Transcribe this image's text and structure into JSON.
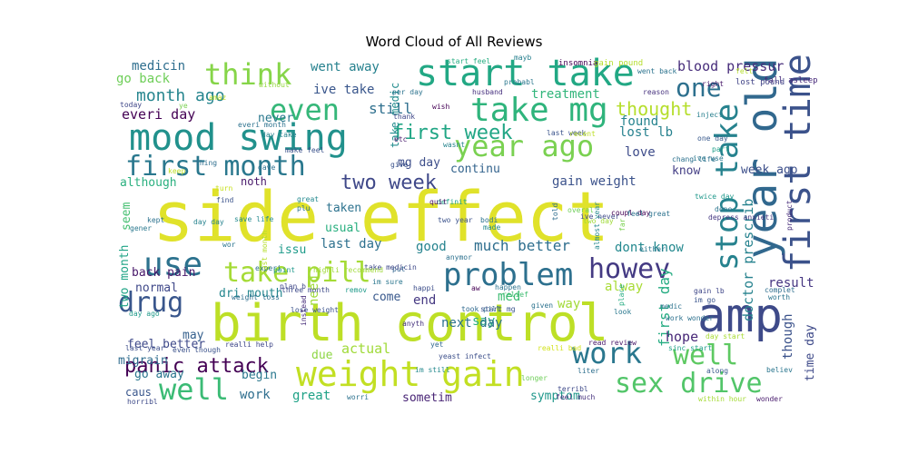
{
  "chart_data": {
    "type": "wordcloud",
    "title": "Word Cloud of All Reviews",
    "background": "#ffffff",
    "colormap": "viridis",
    "words": [
      {
        "text": "side effect",
        "color": "#e0e22a"
      },
      {
        "text": "birth control",
        "color": "#bddf26"
      },
      {
        "text": "mood swing",
        "color": "#21918c"
      },
      {
        "text": "weight gain",
        "color": "#c2df23"
      },
      {
        "text": "start take",
        "color": "#22a884"
      },
      {
        "text": "take mg",
        "color": "#2fb47c"
      },
      {
        "text": "first month",
        "color": "#2a788e"
      },
      {
        "text": "year ago",
        "color": "#7ad151"
      },
      {
        "text": "year old",
        "color": "#31688e"
      },
      {
        "text": "first time",
        "color": "#3b528b"
      },
      {
        "text": "amp",
        "color": "#3e4a89"
      },
      {
        "text": "use",
        "color": "#2c728e"
      },
      {
        "text": "problem",
        "color": "#2d708e"
      },
      {
        "text": "stop take",
        "color": "#26828e"
      },
      {
        "text": "even",
        "color": "#35b779"
      },
      {
        "text": "think",
        "color": "#86d549"
      },
      {
        "text": "take pill",
        "color": "#a5db36"
      },
      {
        "text": "drug",
        "color": "#39568c"
      },
      {
        "text": "howev",
        "color": "#443a83"
      },
      {
        "text": "work",
        "color": "#2a778e"
      },
      {
        "text": "well",
        "color": "#5ec962"
      },
      {
        "text": "well",
        "color": "#3bbb75"
      },
      {
        "text": "sex drive",
        "color": "#52c569"
      },
      {
        "text": "one",
        "color": "#2d708e"
      },
      {
        "text": "panic attack",
        "color": "#440154"
      },
      {
        "text": "first week",
        "color": "#21a685"
      },
      {
        "text": "two week",
        "color": "#3f4889"
      },
      {
        "text": "month ago",
        "color": "#25858e"
      },
      {
        "text": "thought",
        "color": "#b5de2b"
      },
      {
        "text": "blood pressur",
        "color": "#472d7b"
      },
      {
        "text": "still",
        "color": "#2e6f8e"
      },
      {
        "text": "lost lb",
        "color": "#26818e"
      },
      {
        "text": "everi day",
        "color": "#440154"
      },
      {
        "text": "gain weight",
        "color": "#3b528b"
      },
      {
        "text": "go back",
        "color": "#6ece58"
      },
      {
        "text": "medicin",
        "color": "#2e6e8e"
      },
      {
        "text": "went away",
        "color": "#26818e"
      },
      {
        "text": "ive take",
        "color": "#39568c"
      },
      {
        "text": "treatment",
        "color": "#31b57b"
      },
      {
        "text": "found",
        "color": "#25838e"
      },
      {
        "text": "love",
        "color": "#3e4c8a"
      },
      {
        "text": "never",
        "color": "#2a788e"
      },
      {
        "text": "although",
        "color": "#2ab07f"
      },
      {
        "text": "noth",
        "color": "#48186a"
      },
      {
        "text": "take medic",
        "color": "#228c8d"
      },
      {
        "text": "mg day",
        "color": "#3d4e8a"
      },
      {
        "text": "continu",
        "color": "#33638d"
      },
      {
        "text": "last day",
        "color": "#2d708e"
      },
      {
        "text": "know",
        "color": "#433e85"
      },
      {
        "text": "week ago",
        "color": "#3c4f8a"
      },
      {
        "text": "taken",
        "color": "#2c728e"
      },
      {
        "text": "usual",
        "color": "#29af7f"
      },
      {
        "text": "issu",
        "color": "#1e9b8a"
      },
      {
        "text": "good",
        "color": "#25838e"
      },
      {
        "text": "much better",
        "color": "#2e6e8e"
      },
      {
        "text": "dont know",
        "color": "#23888e"
      },
      {
        "text": "seem",
        "color": "#44bf70"
      },
      {
        "text": "two month",
        "color": "#20a486"
      },
      {
        "text": "need",
        "color": "#9fda3a"
      },
      {
        "text": "alway",
        "color": "#a8db34"
      },
      {
        "text": "first day",
        "color": "#25ac82"
      },
      {
        "text": "doctor prescrib",
        "color": "#26828e"
      },
      {
        "text": "result",
        "color": "#453581"
      },
      {
        "text": "back pain",
        "color": "#48186a"
      },
      {
        "text": "normal",
        "color": "#3f4889"
      },
      {
        "text": "dri mouth",
        "color": "#24868e"
      },
      {
        "text": "come",
        "color": "#38588c"
      },
      {
        "text": "med",
        "color": "#3fbc73"
      },
      {
        "text": "way",
        "color": "#a2da37"
      },
      {
        "text": "say",
        "color": "#2ab07f"
      },
      {
        "text": "end",
        "color": "#453882"
      },
      {
        "text": "hope",
        "color": "#482878"
      },
      {
        "text": "though",
        "color": "#3b528b"
      },
      {
        "text": "feel better",
        "color": "#3e4989"
      },
      {
        "text": "migrain",
        "color": "#2f6c8e"
      },
      {
        "text": "may",
        "color": "#35608d"
      },
      {
        "text": "next day",
        "color": "#2c728e"
      },
      {
        "text": "actual",
        "color": "#a0da39"
      },
      {
        "text": "due",
        "color": "#8ed645"
      },
      {
        "text": "time day",
        "color": "#3e4a89"
      },
      {
        "text": "go away",
        "color": "#2a768e"
      },
      {
        "text": "begin",
        "color": "#2a788e"
      },
      {
        "text": "caus",
        "color": "#39568c"
      },
      {
        "text": "work",
        "color": "#2e6e8e"
      },
      {
        "text": "great",
        "color": "#1fa287"
      },
      {
        "text": "sometim",
        "color": "#482475"
      },
      {
        "text": "symptom",
        "color": "#1f978b"
      },
      {
        "text": "insomnia",
        "color": "#440154"
      },
      {
        "text": "gain pound",
        "color": "#b5de2b"
      },
      {
        "text": "fall asleep",
        "color": "#472a7a"
      },
      {
        "text": "lost pound",
        "color": "#414487"
      },
      {
        "text": "today",
        "color": "#3f4788"
      },
      {
        "text": "ye",
        "color": "#7ad151"
      },
      {
        "text": "husband",
        "color": "#46307e"
      },
      {
        "text": "start feel",
        "color": "#26ad81"
      },
      {
        "text": "mayb",
        "color": "#277f8e"
      },
      {
        "text": "probabl",
        "color": "#2a778e"
      },
      {
        "text": "per day",
        "color": "#2c738e"
      },
      {
        "text": "wish",
        "color": "#440154"
      },
      {
        "text": "thank",
        "color": "#3f4788"
      },
      {
        "text": "etc",
        "color": "#481a6c"
      },
      {
        "text": "wasnt",
        "color": "#25848e"
      },
      {
        "text": "last week",
        "color": "#3a538b"
      },
      {
        "text": "recent",
        "color": "#bddf26"
      },
      {
        "text": "right",
        "color": "#48186a"
      },
      {
        "text": "reason",
        "color": "#46327e"
      },
      {
        "text": "inject",
        "color": "#277f8e"
      },
      {
        "text": "one day",
        "color": "#38598c"
      },
      {
        "text": "part",
        "color": "#1f9e89"
      },
      {
        "text": "chang life",
        "color": "#2d718e"
      },
      {
        "text": "ive use",
        "color": "#2a788e"
      },
      {
        "text": "give",
        "color": "#3b528b"
      },
      {
        "text": "definit",
        "color": "#1fa088"
      },
      {
        "text": "quit",
        "color": "#471164"
      },
      {
        "text": "told",
        "color": "#2e6d8e"
      },
      {
        "text": "ive never",
        "color": "#3e4a89"
      },
      {
        "text": "overal",
        "color": "#6ece58"
      },
      {
        "text": "coupl day",
        "color": "#440154"
      },
      {
        "text": "twice day",
        "color": "#1f988b"
      },
      {
        "text": "done",
        "color": "#2b748e"
      },
      {
        "text": "depress anxieti",
        "color": "#453882"
      },
      {
        "text": "product",
        "color": "#472c7a"
      },
      {
        "text": "two year",
        "color": "#3b528b"
      },
      {
        "text": "bodi",
        "color": "#2c728e"
      },
      {
        "text": "made",
        "color": "#23898e"
      },
      {
        "text": "two day",
        "color": "#a0da39"
      },
      {
        "text": "feel great",
        "color": "#2c728e"
      },
      {
        "text": "almost year",
        "color": "#23888e"
      },
      {
        "text": "anymor",
        "color": "#2d718e"
      },
      {
        "text": "aw",
        "color": "#440154"
      },
      {
        "text": "happen",
        "color": "#2c738e"
      },
      {
        "text": "put",
        "color": "#32648e"
      },
      {
        "text": "take medicin",
        "color": "#3e4989"
      },
      {
        "text": "remov",
        "color": "#1f9a8a"
      },
      {
        "text": "happi",
        "color": "#3d4e8a"
      },
      {
        "text": "im sure",
        "color": "#2a768e"
      },
      {
        "text": "three month",
        "color": "#3e4a89"
      },
      {
        "text": "wor",
        "color": "#2b758e"
      },
      {
        "text": "plan b",
        "color": "#3f4788"
      },
      {
        "text": "experi",
        "color": "#2d708e"
      },
      {
        "text": "point",
        "color": "#1f988b"
      },
      {
        "text": "weight loss",
        "color": "#2e6e8e"
      },
      {
        "text": "lose weight",
        "color": "#3b528b"
      },
      {
        "text": "relief",
        "color": "#40bd72"
      },
      {
        "text": "given",
        "color": "#2c728e"
      },
      {
        "text": "took pill",
        "color": "#306a8e"
      },
      {
        "text": "start mg",
        "color": "#3a548c"
      },
      {
        "text": "anyth",
        "color": "#46337e"
      },
      {
        "text": "yet",
        "color": "#31688e"
      },
      {
        "text": "yeast infect",
        "color": "#3c4f8a"
      },
      {
        "text": "im still",
        "color": "#23898e"
      },
      {
        "text": "medic",
        "color": "#2c738e"
      },
      {
        "text": "place",
        "color": "#25ac82"
      },
      {
        "text": "work wonder",
        "color": "#2d718e"
      },
      {
        "text": "day start",
        "color": "#a8db34"
      },
      {
        "text": "read review",
        "color": "#481769"
      },
      {
        "text": "realli bad",
        "color": "#d2e21b"
      },
      {
        "text": "sinc start",
        "color": "#1f9f88"
      },
      {
        "text": "liter",
        "color": "#2e6f8e"
      },
      {
        "text": "longer",
        "color": "#6ece58"
      },
      {
        "text": "terribl",
        "color": "#3e4989"
      },
      {
        "text": "feel much",
        "color": "#46327e"
      },
      {
        "text": "within hour",
        "color": "#a5db36"
      },
      {
        "text": "wonder",
        "color": "#481b6d"
      },
      {
        "text": "believ",
        "color": "#2a768e"
      },
      {
        "text": "along",
        "color": "#38588c"
      },
      {
        "text": "look",
        "color": "#2a788e"
      },
      {
        "text": "gain lb",
        "color": "#3f4788"
      },
      {
        "text": "im go",
        "color": "#3a548c"
      },
      {
        "text": "complet",
        "color": "#2e6e8e"
      },
      {
        "text": "worth",
        "color": "#2b748e"
      },
      {
        "text": "far",
        "color": "#7ad151"
      },
      {
        "text": "either",
        "color": "#2a778e"
      },
      {
        "text": "felt",
        "color": "#b5de2b"
      },
      {
        "text": "went back",
        "color": "#2c738e"
      },
      {
        "text": "without",
        "color": "#95d840"
      },
      {
        "text": "amaz",
        "color": "#bddf26"
      },
      {
        "text": "everi month",
        "color": "#2c728e"
      },
      {
        "text": "day take",
        "color": "#25838e"
      },
      {
        "text": "make feel",
        "color": "#3b528b"
      },
      {
        "text": "great",
        "color": "#23898e"
      },
      {
        "text": "plu",
        "color": "#2c728e"
      },
      {
        "text": "gave",
        "color": "#2e6f8e"
      },
      {
        "text": "keep",
        "color": "#bddf26"
      },
      {
        "text": "turn",
        "color": "#c8e020"
      },
      {
        "text": "thing",
        "color": "#2e6e8e"
      },
      {
        "text": "find",
        "color": "#3b528b"
      },
      {
        "text": "kept",
        "color": "#2c728e"
      },
      {
        "text": "day day",
        "color": "#26828e"
      },
      {
        "text": "save life",
        "color": "#23898e"
      },
      {
        "text": "gener",
        "color": "#2a788e"
      },
      {
        "text": "highli recommend",
        "color": "#a0da39"
      },
      {
        "text": "day ago",
        "color": "#1f9a8a"
      },
      {
        "text": "last month",
        "color": "#b5de2b"
      },
      {
        "text": "realli help",
        "color": "#3f4788"
      },
      {
        "text": "instead",
        "color": "#472c7a"
      },
      {
        "text": "worri",
        "color": "#2c728e"
      },
      {
        "text": "last year",
        "color": "#3d4e8a"
      },
      {
        "text": "even though",
        "color": "#3b528b"
      },
      {
        "text": "horribl",
        "color": "#3e4a89"
      }
    ]
  }
}
